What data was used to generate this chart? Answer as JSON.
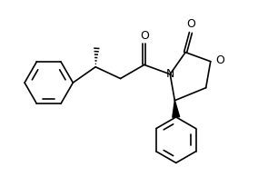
{
  "bg_color": "#ffffff",
  "line_color": "#000000",
  "figsize": [
    2.84,
    2.06
  ],
  "dpi": 100,
  "xlim": [
    0,
    10
  ],
  "ylim": [
    0,
    7.25
  ]
}
